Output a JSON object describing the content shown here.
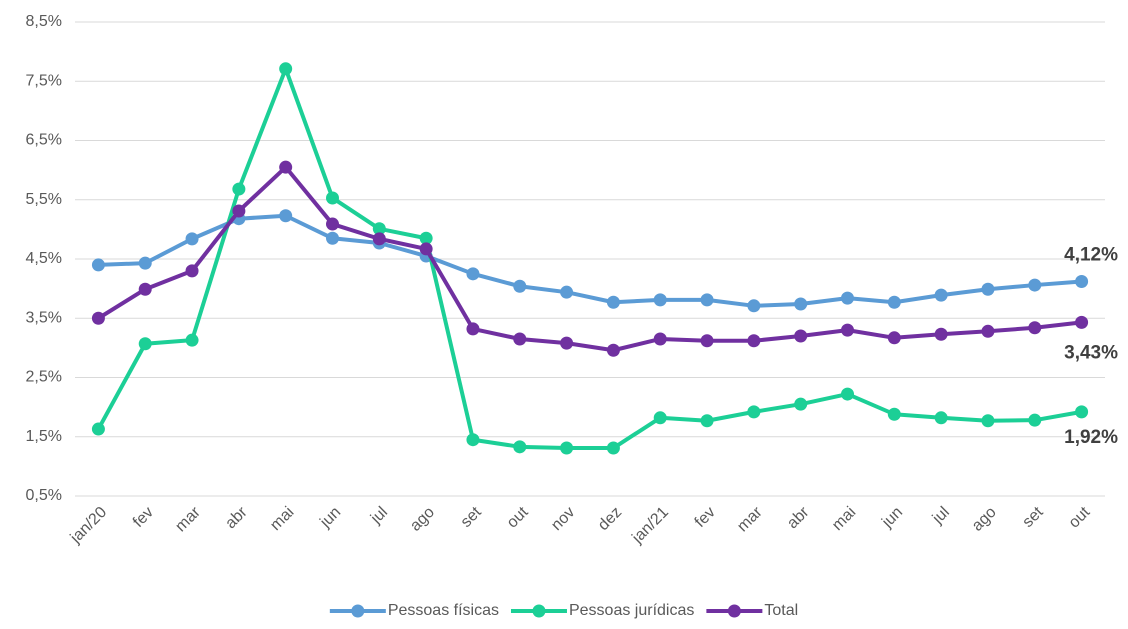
{
  "chart_data": {
    "type": "line",
    "categories": [
      "jan/20",
      "fev",
      "mar",
      "abr",
      "mai",
      "jun",
      "jul",
      "ago",
      "set",
      "out",
      "nov",
      "dez",
      "jan/21",
      "fev",
      "mar",
      "abr",
      "mai",
      "jun",
      "jul",
      "ago",
      "set",
      "out"
    ],
    "ylim": [
      0.5,
      8.5
    ],
    "yticks": [
      {
        "value": 0.5,
        "label": "0,5%"
      },
      {
        "value": 1.5,
        "label": "1,5%"
      },
      {
        "value": 2.5,
        "label": "2,5%"
      },
      {
        "value": 3.5,
        "label": "3,5%"
      },
      {
        "value": 4.5,
        "label": "4,5%"
      },
      {
        "value": 5.5,
        "label": "5,5%"
      },
      {
        "value": 6.5,
        "label": "6,5%"
      },
      {
        "value": 7.5,
        "label": "7,5%"
      },
      {
        "value": 8.5,
        "label": "8,5%"
      }
    ],
    "grid": true,
    "legend": "bottom",
    "series": [
      {
        "name": "Pessoas físicas",
        "color": "#5b9bd5",
        "values": [
          4.4,
          4.43,
          4.84,
          5.18,
          5.23,
          4.85,
          4.77,
          4.55,
          4.25,
          4.04,
          3.94,
          3.77,
          3.81,
          3.81,
          3.71,
          3.74,
          3.84,
          3.77,
          3.89,
          3.99,
          4.06,
          4.12
        ],
        "value_labels": [
          null,
          null,
          null,
          null,
          null,
          null,
          null,
          null,
          null,
          null,
          null,
          null,
          null,
          null,
          null,
          null,
          null,
          null,
          null,
          null,
          null,
          "4,12%"
        ]
      },
      {
        "name": "Pessoas jurídicas",
        "color": "#1ccf96",
        "values": [
          1.63,
          3.07,
          3.13,
          5.68,
          7.71,
          5.53,
          5.01,
          4.85,
          1.45,
          1.33,
          1.31,
          1.31,
          1.82,
          1.77,
          1.92,
          2.05,
          2.22,
          1.88,
          1.82,
          1.77,
          1.78,
          1.92
        ],
        "value_labels": [
          null,
          null,
          null,
          null,
          null,
          null,
          null,
          null,
          null,
          null,
          null,
          null,
          null,
          null,
          null,
          null,
          null,
          null,
          null,
          null,
          null,
          "1,92%"
        ]
      },
      {
        "name": "Total",
        "color": "#7030a0",
        "values": [
          3.5,
          3.99,
          4.3,
          5.31,
          6.05,
          5.09,
          4.84,
          4.67,
          3.32,
          3.15,
          3.08,
          2.96,
          3.15,
          3.12,
          3.12,
          3.2,
          3.3,
          3.17,
          3.23,
          3.28,
          3.34,
          3.43
        ],
        "value_labels": [
          null,
          null,
          null,
          null,
          null,
          null,
          null,
          null,
          null,
          null,
          null,
          null,
          null,
          null,
          null,
          null,
          null,
          null,
          null,
          null,
          null,
          "3,43%"
        ]
      }
    ]
  }
}
